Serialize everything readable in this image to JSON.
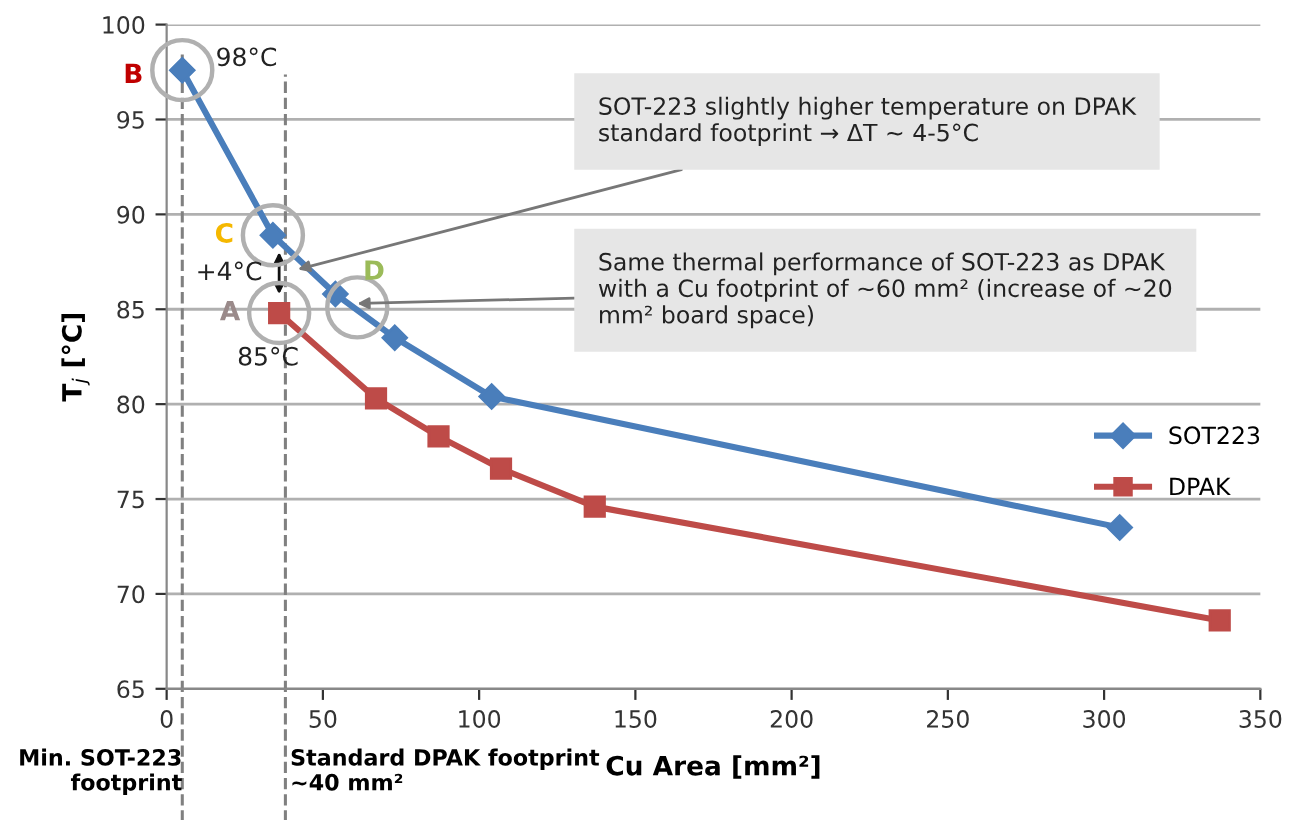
{
  "chart_data": {
    "type": "line",
    "xlabel": "Cu Area [mm²]",
    "ylabel": "T$_{j}$ [°C]",
    "xlim": [
      0,
      350
    ],
    "xticks": [
      0,
      50,
      100,
      150,
      200,
      250,
      300,
      350
    ],
    "ylim": [
      65,
      100
    ],
    "yticks": [
      65,
      70,
      75,
      80,
      85,
      90,
      95,
      100
    ],
    "grid": "y",
    "legend": "right",
    "line_style": "solid",
    "series": [
      {
        "name": "SOT223",
        "color": "#4a7ebb",
        "marker": "diamond",
        "x": [
          5,
          34,
          54,
          73,
          104,
          305
        ],
        "values": [
          97.6,
          88.9,
          85.8,
          83.5,
          80.4,
          73.5
        ]
      },
      {
        "name": "DPAK",
        "color": "#be4b48",
        "marker": "square",
        "x": [
          36,
          67,
          87,
          107,
          137,
          337
        ],
        "values": [
          84.8,
          80.3,
          78.3,
          76.6,
          74.6,
          68.6
        ]
      }
    ],
    "ref_lines": [
      {
        "axis": "x",
        "value": 5,
        "label": "Min. SOT-223\nfootprint",
        "color": "#808080",
        "line_style": "dashed"
      },
      {
        "axis": "x",
        "value": 38,
        "label": "Standard DPAK footprint\n~40 mm²",
        "color": "#808080",
        "line_style": "dashed"
      }
    ],
    "annotations": [
      {
        "text": "B",
        "x": 5,
        "y": 97.6
      },
      {
        "text": "98°C",
        "x": 5,
        "y": 97.6
      },
      {
        "text": "C",
        "x": 34,
        "y": 88.9
      },
      {
        "text": "+4°C",
        "x": 36,
        "y": 86.9
      },
      {
        "text": "A",
        "x": 36,
        "y": 84.8
      },
      {
        "text": "85°C",
        "x": 36,
        "y": 84.8
      },
      {
        "text": "D",
        "x": 61,
        "y": 85.1
      },
      {
        "text": "SOT-223 slightly higher temperature on DPAK\nstandard footprint → ΔT ~ 4-5°C",
        "x": 42,
        "y": 87.1
      },
      {
        "text": "Same thermal performance of SOT-223 as DPAK\nwith a Cu footprint of ~60 mm² (increase of ~20\nmm² board space)",
        "x": 61,
        "y": 85.3
      }
    ]
  }
}
